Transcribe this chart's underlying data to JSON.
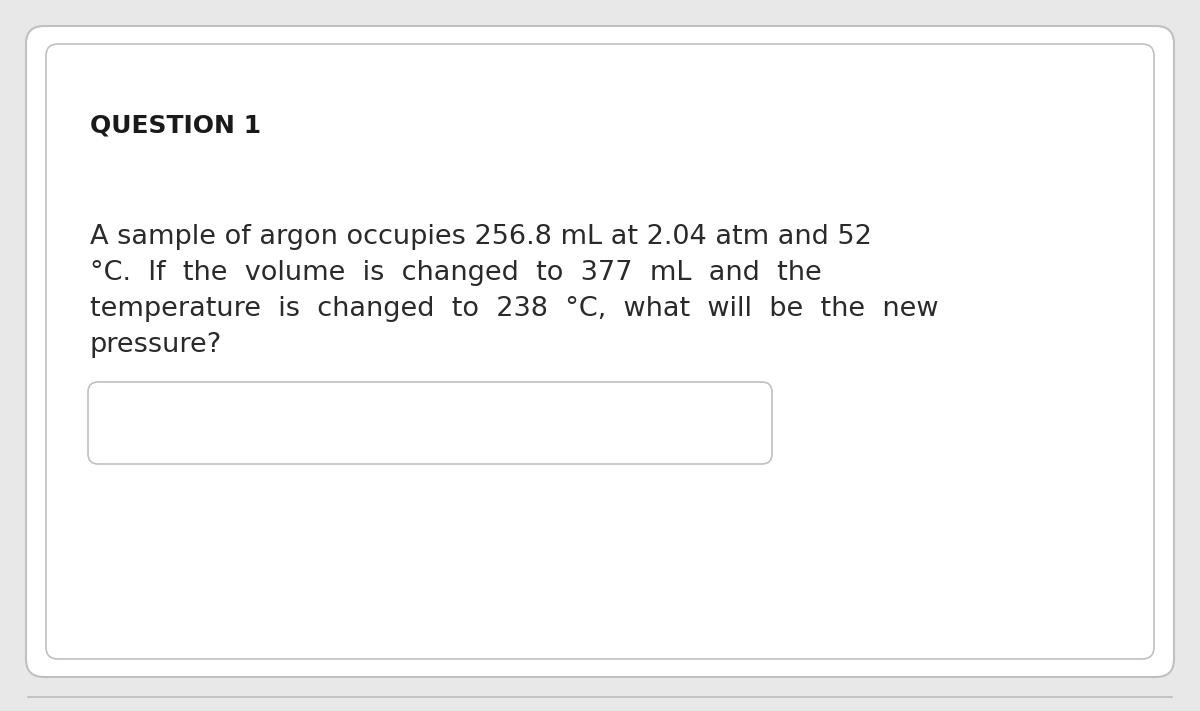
{
  "background_color": "#e8e8e8",
  "card_color": "#ffffff",
  "card_border_color": "#c0c0c0",
  "question_label": "QUESTION 1",
  "question_label_color": "#1a1a1a",
  "question_label_fontsize": 18,
  "body_text_color": "#2a2a2a",
  "body_text_fontsize": 19.5,
  "body_text_line1": "A sample of argon occupies 256.8 mL at 2.04 atm and 52",
  "body_text_line2": "°C.  If  the  volume  is  changed  to  377  mL  and  the",
  "body_text_line3": "temperature  is  changed  to  238  °C,  what  will  be  the  new",
  "body_text_line4": "pressure?",
  "answer_box_border_color": "#c0c0c0",
  "answer_box_color": "#ffffff",
  "bottom_line_color": "#bbbbbb"
}
